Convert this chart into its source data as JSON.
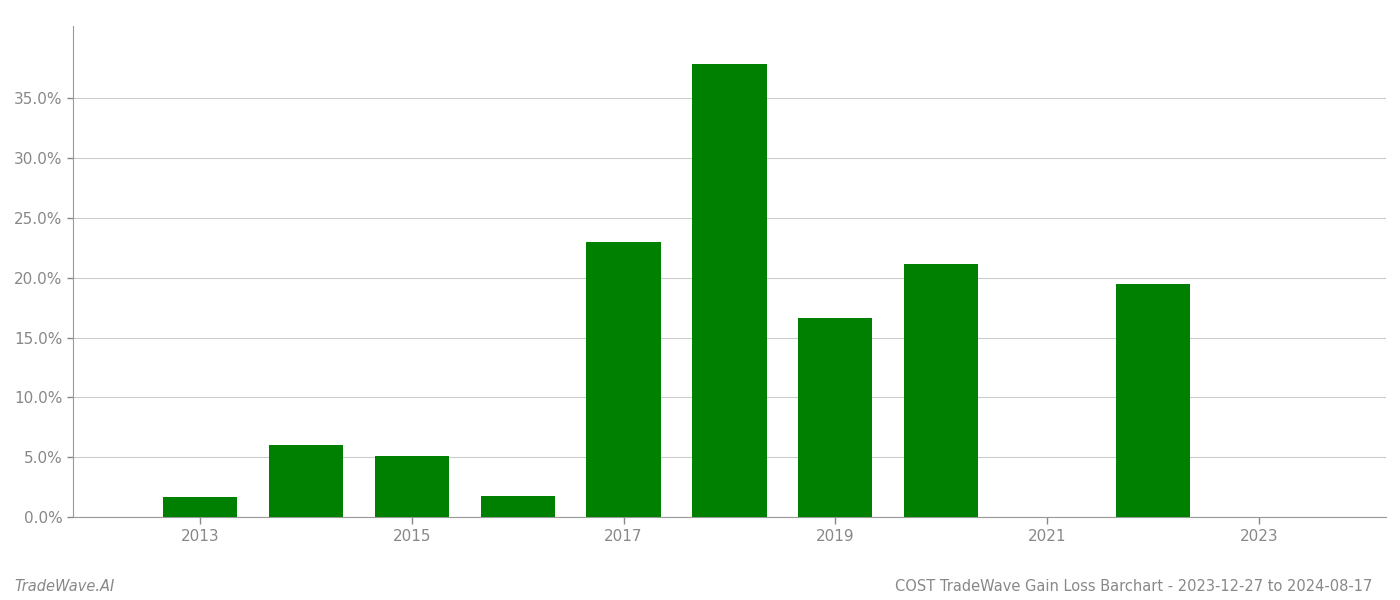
{
  "years": [
    2013,
    2014,
    2015,
    2016,
    2017,
    2018,
    2019,
    2020,
    2021,
    2022,
    2023
  ],
  "values": [
    0.017,
    0.06,
    0.051,
    0.018,
    0.23,
    0.378,
    0.166,
    0.211,
    0.0,
    0.195,
    0.0
  ],
  "bar_color": "#008000",
  "background_color": "#ffffff",
  "grid_color": "#cccccc",
  "axis_color": "#999999",
  "tick_color": "#888888",
  "ylim": [
    0,
    0.41
  ],
  "yticks": [
    0.0,
    0.05,
    0.1,
    0.15,
    0.2,
    0.25,
    0.3,
    0.35
  ],
  "xticks": [
    2013,
    2015,
    2017,
    2019,
    2021,
    2023
  ],
  "title": "COST TradeWave Gain Loss Barchart - 2023-12-27 to 2024-08-17",
  "watermark_left": "TradeWave.AI",
  "bar_width": 0.7,
  "title_fontsize": 10.5,
  "tick_fontsize": 11,
  "watermark_fontsize": 10.5,
  "xlim": [
    2011.8,
    2024.2
  ]
}
